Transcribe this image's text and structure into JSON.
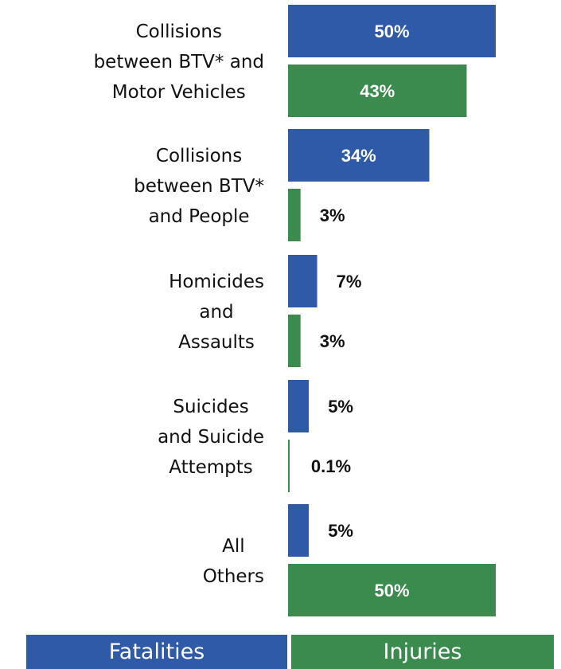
{
  "chart_data": {
    "type": "bar",
    "orientation": "horizontal",
    "categories": [
      [
        "Collisions",
        "between BTV* and",
        "Motor Vehicles"
      ],
      [
        "Collisions",
        "between BTV*",
        "and People"
      ],
      [
        "Homicides",
        "and",
        "Assaults"
      ],
      [
        "Suicides",
        "and Suicide",
        "Attempts"
      ],
      [
        "All",
        "Others"
      ]
    ],
    "series": [
      {
        "name": "Fatalities",
        "color": "#2f5aa8",
        "values": [
          50,
          34,
          7,
          5,
          5
        ],
        "labels": [
          "50%",
          "34%",
          "7%",
          "5%",
          "5%"
        ]
      },
      {
        "name": "Injuries",
        "color": "#3b8a4e",
        "values": [
          43,
          3,
          3,
          0.1,
          50
        ],
        "labels": [
          "43%",
          "3%",
          "3%",
          "0.1%",
          "50%"
        ]
      }
    ],
    "xlim": [
      0,
      50
    ],
    "grid": false,
    "legend": "bottom"
  }
}
